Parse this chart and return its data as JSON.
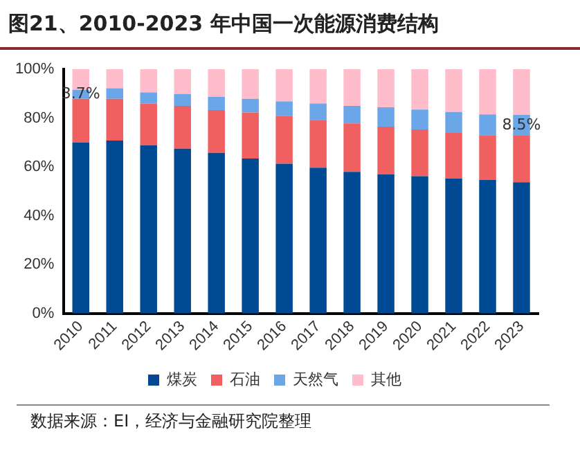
{
  "chart_data": {
    "type": "bar",
    "stacked": true,
    "title": "图21、2010-2023 年中国一次能源消费结构",
    "categories": [
      "2010",
      "2011",
      "2012",
      "2013",
      "2014",
      "2015",
      "2016",
      "2017",
      "2018",
      "2019",
      "2020",
      "2021",
      "2022",
      "2023"
    ],
    "series": [
      {
        "name": "煤炭",
        "color": "#004a94",
        "values": [
          70.0,
          70.8,
          68.9,
          67.5,
          65.8,
          63.4,
          61.3,
          59.7,
          58.0,
          57.0,
          56.2,
          55.3,
          54.7,
          53.7
        ]
      },
      {
        "name": "石油",
        "color": "#f06060",
        "values": [
          17.9,
          17.1,
          17.1,
          17.5,
          17.5,
          18.9,
          19.6,
          19.5,
          19.8,
          19.5,
          19.1,
          18.6,
          18.3,
          19.1
        ]
      },
      {
        "name": "天然气",
        "color": "#6aa6e8",
        "values": [
          3.7,
          4.3,
          4.5,
          4.9,
          5.4,
          5.6,
          5.9,
          6.8,
          7.2,
          7.9,
          8.2,
          8.6,
          8.5,
          8.5
        ],
        "value_labels": [
          "3.7%",
          null,
          null,
          null,
          null,
          null,
          null,
          null,
          null,
          null,
          null,
          null,
          null,
          "8.5%"
        ]
      },
      {
        "name": "其他",
        "color": "#ffbccb",
        "values": [
          8.4,
          7.8,
          9.5,
          10.1,
          11.3,
          12.1,
          13.2,
          14.0,
          15.0,
          15.6,
          16.5,
          17.5,
          18.5,
          18.7
        ]
      }
    ],
    "ylim": [
      0,
      100
    ],
    "yticks": [
      {
        "value": 0,
        "label": "0%"
      },
      {
        "value": 20,
        "label": "20%"
      },
      {
        "value": 40,
        "label": "40%"
      },
      {
        "value": 60,
        "label": "60%"
      },
      {
        "value": 80,
        "label": "80%"
      },
      {
        "value": 100,
        "label": "100%"
      }
    ],
    "grid": false,
    "legend": "bottom",
    "annotations": [
      "数据来源：EI，经济与金融研究院整理"
    ]
  }
}
